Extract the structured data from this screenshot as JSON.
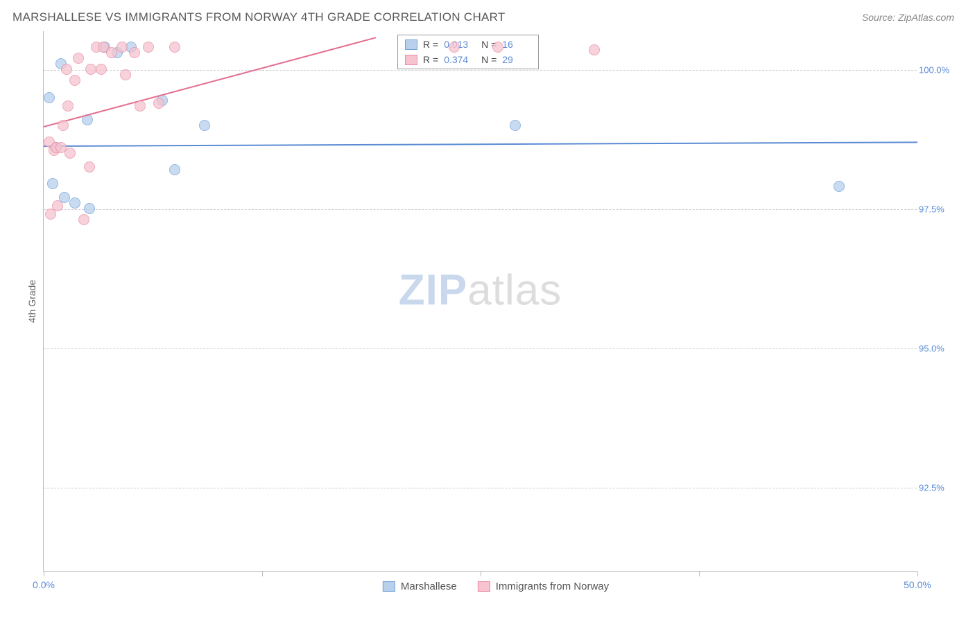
{
  "header": {
    "title": "MARSHALLESE VS IMMIGRANTS FROM NORWAY 4TH GRADE CORRELATION CHART",
    "source": "Source: ZipAtlas.com"
  },
  "chart": {
    "type": "scatter",
    "ylabel": "4th Grade",
    "watermark_zip": "ZIP",
    "watermark_rest": "atlas",
    "background_color": "#ffffff",
    "grid_color": "#cccccc",
    "axis_color": "#bbbbbb",
    "axis_label_color": "#5b8bd4",
    "x_domain": [
      0,
      50
    ],
    "y_domain": [
      91.0,
      100.7
    ],
    "x_ticks": [
      {
        "v": 0,
        "label": "0.0%",
        "major": true
      },
      {
        "v": 12.5,
        "label": "",
        "major": false
      },
      {
        "v": 25,
        "label": "",
        "major": false
      },
      {
        "v": 37.5,
        "label": "",
        "major": false
      },
      {
        "v": 50,
        "label": "50.0%",
        "major": true
      }
    ],
    "y_gridlines": [
      {
        "v": 92.5,
        "label": "92.5%"
      },
      {
        "v": 95.0,
        "label": "95.0%"
      },
      {
        "v": 97.5,
        "label": "97.5%"
      },
      {
        "v": 100.0,
        "label": "100.0%"
      }
    ],
    "series": [
      {
        "key": "marshallese",
        "label": "Marshallese",
        "fill": "#b8d0ec",
        "stroke": "#6f9fd8",
        "marker_r": 8,
        "marker_opacity": 0.75,
        "R": "0.013",
        "N": "16",
        "trend": {
          "x1": 0,
          "y1": 98.65,
          "x2": 50,
          "y2": 98.72,
          "color": "#5b8bd4",
          "width": 2
        },
        "points": [
          {
            "x": 0.5,
            "y": 97.95
          },
          {
            "x": 0.7,
            "y": 98.6
          },
          {
            "x": 1.2,
            "y": 97.7
          },
          {
            "x": 1.8,
            "y": 97.6
          },
          {
            "x": 2.5,
            "y": 99.1
          },
          {
            "x": 2.6,
            "y": 97.5
          },
          {
            "x": 4.2,
            "y": 100.3
          },
          {
            "x": 5.0,
            "y": 100.4
          },
          {
            "x": 6.8,
            "y": 99.45
          },
          {
            "x": 7.5,
            "y": 98.2
          },
          {
            "x": 9.2,
            "y": 99.0
          },
          {
            "x": 27.0,
            "y": 99.0
          },
          {
            "x": 45.5,
            "y": 97.9
          },
          {
            "x": 1.0,
            "y": 100.1
          },
          {
            "x": 3.5,
            "y": 100.4
          },
          {
            "x": 0.3,
            "y": 99.5
          }
        ]
      },
      {
        "key": "norway",
        "label": "Immigrants from Norway",
        "fill": "#f6c3cf",
        "stroke": "#e88ba4",
        "marker_r": 8,
        "marker_opacity": 0.75,
        "R": "0.374",
        "N": "29",
        "trend": {
          "x1": 0,
          "y1": 99.0,
          "x2": 19,
          "y2": 100.6,
          "color": "#e46f8f",
          "width": 2
        },
        "points": [
          {
            "x": 0.3,
            "y": 98.7
          },
          {
            "x": 0.4,
            "y": 97.4
          },
          {
            "x": 0.6,
            "y": 98.55
          },
          {
            "x": 0.7,
            "y": 98.6
          },
          {
            "x": 0.8,
            "y": 97.55
          },
          {
            "x": 1.0,
            "y": 98.6
          },
          {
            "x": 1.1,
            "y": 99.0
          },
          {
            "x": 1.3,
            "y": 100.0
          },
          {
            "x": 1.5,
            "y": 98.5
          },
          {
            "x": 1.8,
            "y": 99.8
          },
          {
            "x": 2.0,
            "y": 100.2
          },
          {
            "x": 2.3,
            "y": 97.3
          },
          {
            "x": 2.6,
            "y": 98.25
          },
          {
            "x": 2.7,
            "y": 100.0
          },
          {
            "x": 3.0,
            "y": 100.4
          },
          {
            "x": 3.3,
            "y": 100.0
          },
          {
            "x": 3.4,
            "y": 100.4
          },
          {
            "x": 3.9,
            "y": 100.3
          },
          {
            "x": 4.5,
            "y": 100.4
          },
          {
            "x": 4.7,
            "y": 99.9
          },
          {
            "x": 5.2,
            "y": 100.3
          },
          {
            "x": 5.5,
            "y": 99.35
          },
          {
            "x": 6.0,
            "y": 100.4
          },
          {
            "x": 7.5,
            "y": 100.4
          },
          {
            "x": 6.6,
            "y": 99.4
          },
          {
            "x": 1.4,
            "y": 99.35
          },
          {
            "x": 23.5,
            "y": 100.4
          },
          {
            "x": 26.0,
            "y": 100.4
          },
          {
            "x": 31.5,
            "y": 100.35
          }
        ]
      }
    ]
  }
}
